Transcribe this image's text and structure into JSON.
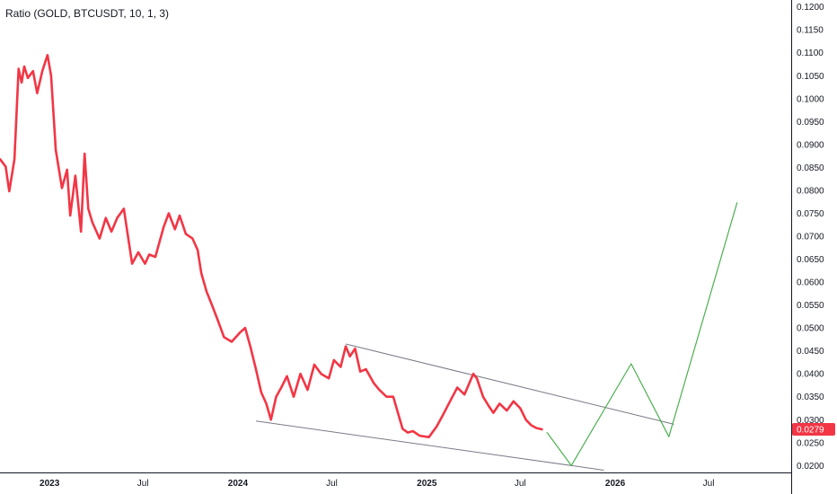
{
  "chart_data": {
    "type": "line",
    "title": "Ratio (GOLD, BTCUSDT, 10, 1, 3)",
    "last_value_label": "0.0279",
    "colors": {
      "price": "#f23645",
      "projection": "#4caf50",
      "trendline": "#787b86",
      "label_bg": "#f23645",
      "axis": "#131722"
    },
    "y_axis": {
      "range": [
        0.0185,
        0.1215
      ],
      "ticks": [
        "0.1200",
        "0.1150",
        "0.1100",
        "0.1050",
        "0.1000",
        "0.0950",
        "0.0900",
        "0.0850",
        "0.0800",
        "0.0750",
        "0.0700",
        "0.0650",
        "0.0600",
        "0.0550",
        "0.0500",
        "0.0450",
        "0.0400",
        "0.0350",
        "0.0300",
        "0.0250",
        "0.0200"
      ],
      "position": "right"
    },
    "x_axis": {
      "range": [
        "2022-09-27",
        "2026-12-08"
      ],
      "ticks": [
        {
          "date": "2023-01-01",
          "label": "2023",
          "bold": true
        },
        {
          "date": "2023-07-01",
          "label": "Jul",
          "bold": false
        },
        {
          "date": "2024-01-01",
          "label": "2024",
          "bold": true
        },
        {
          "date": "2024-07-01",
          "label": "Jul",
          "bold": false
        },
        {
          "date": "2025-01-01",
          "label": "2025",
          "bold": true
        },
        {
          "date": "2025-07-01",
          "label": "Jul",
          "bold": false
        },
        {
          "date": "2026-01-01",
          "label": "2026",
          "bold": true
        },
        {
          "date": "2026-07-01",
          "label": "Jul",
          "bold": false
        }
      ]
    },
    "series": [
      {
        "x": [
          "2022-09-27",
          "2022-10-08",
          "2022-10-15",
          "2022-10-25",
          "2022-11-02",
          "2022-11-08",
          "2022-11-13",
          "2022-11-20",
          "2022-11-30",
          "2022-12-08",
          "2022-12-18",
          "2022-12-28",
          "2023-01-04",
          "2023-01-13",
          "2023-01-25",
          "2023-02-04",
          "2023-02-10",
          "2023-02-20",
          "2023-03-03",
          "2023-03-10",
          "2023-03-17",
          "2023-03-25",
          "2023-04-08",
          "2023-04-20",
          "2023-05-01",
          "2023-05-12",
          "2023-05-25",
          "2023-06-10",
          "2023-06-22",
          "2023-07-05",
          "2023-07-13",
          "2023-07-25",
          "2023-08-10",
          "2023-08-20",
          "2023-09-01",
          "2023-09-10",
          "2023-09-22",
          "2023-10-05",
          "2023-10-15",
          "2023-10-22",
          "2023-11-01",
          "2023-11-10",
          "2023-11-22",
          "2023-12-05",
          "2023-12-20",
          "2024-01-05",
          "2024-01-15",
          "2024-01-25",
          "2024-02-05",
          "2024-02-15",
          "2024-02-25",
          "2024-03-05",
          "2024-03-15",
          "2024-03-25",
          "2024-04-05",
          "2024-04-18",
          "2024-05-01",
          "2024-05-15",
          "2024-05-28",
          "2024-06-10",
          "2024-06-25",
          "2024-07-05",
          "2024-07-18",
          "2024-07-28",
          "2024-08-05",
          "2024-08-15",
          "2024-08-25",
          "2024-09-05",
          "2024-09-20",
          "2024-10-01",
          "2024-10-15",
          "2024-10-28",
          "2024-11-06",
          "2024-11-15",
          "2024-11-25",
          "2024-12-05",
          "2024-12-18",
          "2025-01-05",
          "2025-01-20",
          "2025-02-01",
          "2025-02-15",
          "2025-03-01",
          "2025-03-15",
          "2025-04-01",
          "2025-04-08",
          "2025-04-20",
          "2025-05-01",
          "2025-05-10",
          "2025-05-22",
          "2025-06-05",
          "2025-06-18",
          "2025-07-01",
          "2025-07-12",
          "2025-07-22",
          "2025-08-01",
          "2025-08-12"
        ],
        "values": [
          0.0868,
          0.0852,
          0.0798,
          0.0868,
          0.1065,
          0.1035,
          0.107,
          0.1045,
          0.106,
          0.1012,
          0.106,
          0.1095,
          0.105,
          0.0888,
          0.0805,
          0.0845,
          0.0745,
          0.0832,
          0.071,
          0.088,
          0.076,
          0.073,
          0.0695,
          0.074,
          0.071,
          0.074,
          0.076,
          0.064,
          0.0665,
          0.064,
          0.066,
          0.0655,
          0.072,
          0.075,
          0.0715,
          0.0745,
          0.0705,
          0.0695,
          0.067,
          0.062,
          0.058,
          0.0555,
          0.052,
          0.048,
          0.047,
          0.049,
          0.05,
          0.046,
          0.041,
          0.036,
          0.0335,
          0.03,
          0.035,
          0.037,
          0.0395,
          0.035,
          0.04,
          0.0365,
          0.042,
          0.04,
          0.039,
          0.043,
          0.0415,
          0.046,
          0.0438,
          0.0455,
          0.0405,
          0.041,
          0.038,
          0.0365,
          0.035,
          0.035,
          0.0315,
          0.028,
          0.0272,
          0.0275,
          0.0265,
          0.0262,
          0.0285,
          0.031,
          0.034,
          0.037,
          0.0355,
          0.04,
          0.039,
          0.035,
          0.033,
          0.0315,
          0.0335,
          0.032,
          0.034,
          0.0325,
          0.03,
          0.0288,
          0.0282,
          0.0279
        ]
      },
      {
        "x": [
          "2025-08-22",
          "2025-10-08",
          "2026-02-01",
          "2026-04-15",
          "2026-08-25"
        ],
        "values": [
          0.0272,
          0.02,
          0.0422,
          0.0263,
          0.0773
        ]
      }
    ],
    "trendlines": [
      {
        "x": [
          "2024-07-28",
          "2026-04-25"
        ],
        "values": [
          0.0465,
          0.029
        ]
      },
      {
        "x": [
          "2024-02-05",
          "2025-12-10"
        ],
        "values": [
          0.0297,
          0.019
        ]
      }
    ],
    "grid": false,
    "legend": "none"
  }
}
